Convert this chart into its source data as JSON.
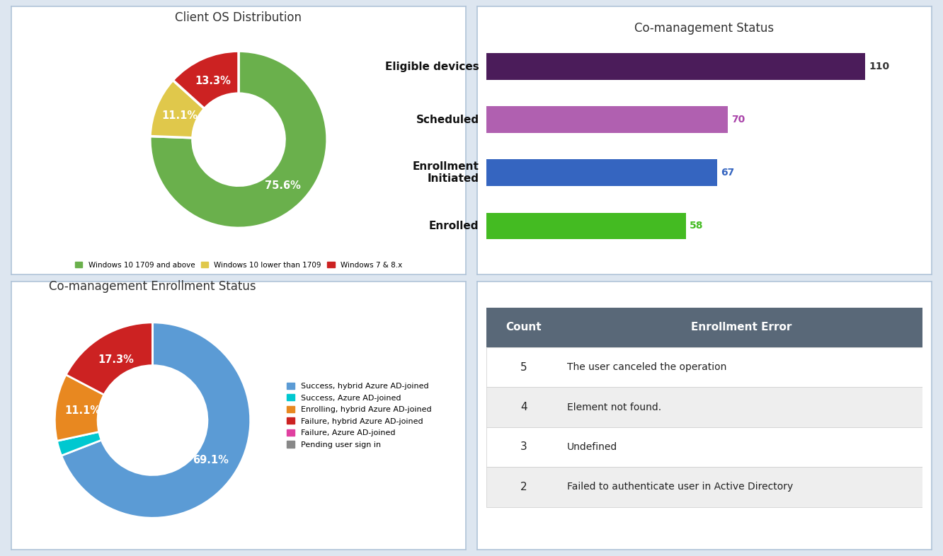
{
  "panel_bg": "#ffffff",
  "outer_bg": "#dde6f0",
  "border_color": "#b0c4d8",
  "pie1_title": "Client OS Distribution",
  "pie1_values": [
    75.6,
    11.1,
    13.3
  ],
  "pie1_colors": [
    "#6ab04c",
    "#e0c84b",
    "#cc2222"
  ],
  "pie1_legend": [
    "Windows 10 1709 and above",
    "Windows 10 lower than 1709",
    "Windows 7 & 8.x"
  ],
  "pie1_legend_colors": [
    "#6ab04c",
    "#e0c84b",
    "#cc2222"
  ],
  "bar_title": "Co-management Status",
  "bar_categories": [
    "Eligible devices",
    "Scheduled",
    "Enrollment\nInitiated",
    "Enrolled"
  ],
  "bar_values": [
    110,
    70,
    67,
    58
  ],
  "bar_colors": [
    "#4b1c5a",
    "#b060b0",
    "#3565c0",
    "#44bb22"
  ],
  "bar_value_colors": [
    "#333333",
    "#aa44aa",
    "#3565c0",
    "#44bb22"
  ],
  "pie2_title": "Co-management Enrollment Status",
  "pie2_values": [
    69.1,
    2.5,
    11.1,
    17.3,
    0.0,
    0.0
  ],
  "pie2_colors": [
    "#5b9bd5",
    "#00c8d0",
    "#e88820",
    "#cc2222",
    "#e040a0",
    "#888888"
  ],
  "pie2_labels": [
    "69.1%",
    "",
    "11.1%",
    "17.3%",
    "",
    ""
  ],
  "pie2_legend": [
    "Success, hybrid Azure AD-joined",
    "Success, Azure AD-joined",
    "Enrolling, hybrid Azure AD-joined",
    "Failure, hybrid Azure AD-joined",
    "Failure, Azure AD-joined",
    "Pending user sign in"
  ],
  "pie2_legend_colors": [
    "#5b9bd5",
    "#00c8d0",
    "#e88820",
    "#cc2222",
    "#e040a0",
    "#888888"
  ],
  "table_header": [
    "Count",
    "Enrollment Error"
  ],
  "table_header_bg": "#596878",
  "table_rows": [
    [
      "5",
      "The user canceled the operation"
    ],
    [
      "4",
      "Element not found."
    ],
    [
      "3",
      "Undefined"
    ],
    [
      "2",
      "Failed to authenticate user in Active Directory"
    ]
  ],
  "table_row_bgs": [
    "#ffffff",
    "#eeeeee",
    "#ffffff",
    "#eeeeee"
  ]
}
